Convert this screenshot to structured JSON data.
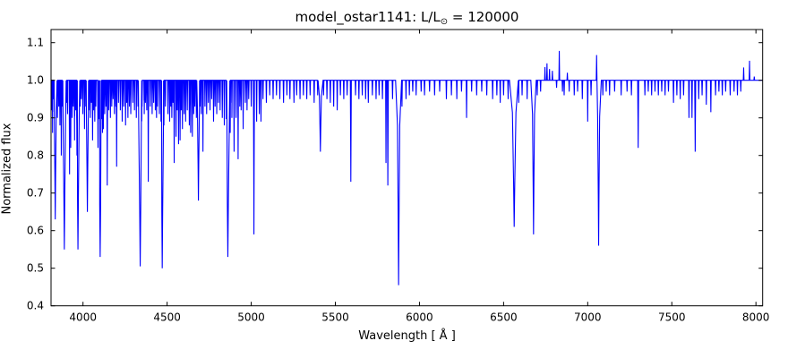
{
  "figure": {
    "title_prefix": "model_ostar1141: L/L",
    "title_sub": "⊙",
    "title_suffix": " = 120000",
    "xlabel": "Wavelength [ Å ]",
    "ylabel": "Normalized flux"
  },
  "chart_data": {
    "type": "line",
    "title": "model_ostar1141: L/L⊙ = 120000",
    "xlabel": "Wavelength [ Å ]",
    "ylabel": "Normalized flux",
    "xlim": [
      3810,
      8040
    ],
    "ylim": [
      0.4,
      1.135
    ],
    "xtick_values": [
      4000,
      4500,
      5000,
      5500,
      6000,
      6500,
      7000,
      7500,
      8000
    ],
    "xtick_labels": [
      "4000",
      "4500",
      "5000",
      "5500",
      "6000",
      "6500",
      "7000",
      "7500",
      "8000"
    ],
    "ytick_values": [
      0.4,
      0.5,
      0.6,
      0.7,
      0.8,
      0.9,
      1.0,
      1.1
    ],
    "ytick_labels": [
      "0.4",
      "0.5",
      "0.6",
      "0.7",
      "0.8",
      "0.9",
      "1.0",
      "1.1"
    ],
    "grid": false,
    "legend": null,
    "line_color": "#0000ff",
    "frame_color": "#000000",
    "background": "#ffffff",
    "continuum_flux": 1.0,
    "spectral_lines_format": [
      "wavelength_angstrom",
      "min_or_peak_flux",
      "optional_halfwidth_angstrom"
    ],
    "spectral_lines": [
      [
        3814,
        0.92
      ],
      [
        3819,
        0.86
      ],
      [
        3826,
        0.95
      ],
      [
        3835,
        0.63,
        4
      ],
      [
        3848,
        0.9
      ],
      [
        3856,
        0.93
      ],
      [
        3863,
        0.88
      ],
      [
        3871,
        0.8
      ],
      [
        3878,
        0.93
      ],
      [
        3889,
        0.55,
        5
      ],
      [
        3902,
        0.94
      ],
      [
        3908,
        0.91
      ],
      [
        3920,
        0.75
      ],
      [
        3927,
        0.82
      ],
      [
        3935,
        0.9
      ],
      [
        3942,
        0.93
      ],
      [
        3950,
        0.84
      ],
      [
        3957,
        0.92
      ],
      [
        3964,
        0.8
      ],
      [
        3970,
        0.55,
        5
      ],
      [
        3983,
        0.93
      ],
      [
        3990,
        0.95
      ],
      [
        3999,
        0.91
      ],
      [
        4009,
        0.87
      ],
      [
        4017,
        0.93
      ],
      [
        4026,
        0.65,
        4
      ],
      [
        4035,
        0.92
      ],
      [
        4043,
        0.9
      ],
      [
        4050,
        0.94
      ],
      [
        4057,
        0.84
      ],
      [
        4063,
        0.92
      ],
      [
        4070,
        0.89
      ],
      [
        4076,
        0.93
      ],
      [
        4089,
        0.82
      ],
      [
        4097,
        0.9
      ],
      [
        4102,
        0.53,
        5.5
      ],
      [
        4110,
        0.92
      ],
      [
        4116,
        0.86
      ],
      [
        4121,
        0.87
      ],
      [
        4129,
        0.91
      ],
      [
        4137,
        0.93
      ],
      [
        4144,
        0.72
      ],
      [
        4153,
        0.92
      ],
      [
        4163,
        0.9
      ],
      [
        4171,
        0.93
      ],
      [
        4179,
        0.95
      ],
      [
        4187,
        0.91
      ],
      [
        4195,
        0.93
      ],
      [
        4200,
        0.77
      ],
      [
        4211,
        0.94
      ],
      [
        4222,
        0.92
      ],
      [
        4233,
        0.89
      ],
      [
        4242,
        0.93
      ],
      [
        4253,
        0.88
      ],
      [
        4260,
        0.94
      ],
      [
        4267,
        0.9
      ],
      [
        4276,
        0.93
      ],
      [
        4284,
        0.91
      ],
      [
        4296,
        0.94
      ],
      [
        4306,
        0.92
      ],
      [
        4317,
        0.9
      ],
      [
        4327,
        0.93
      ],
      [
        4340,
        0.505,
        6
      ],
      [
        4351,
        0.93
      ],
      [
        4364,
        0.91
      ],
      [
        4371,
        0.94
      ],
      [
        4379,
        0.92
      ],
      [
        4388,
        0.73
      ],
      [
        4400,
        0.93
      ],
      [
        4411,
        0.91
      ],
      [
        4420,
        0.94
      ],
      [
        4430,
        0.92
      ],
      [
        4437,
        0.9
      ],
      [
        4442,
        0.93
      ],
      [
        4454,
        0.91
      ],
      [
        4465,
        0.94
      ],
      [
        4471,
        0.5,
        5
      ],
      [
        4481,
        0.88
      ],
      [
        4490,
        0.93
      ],
      [
        4505,
        0.91
      ],
      [
        4515,
        0.89
      ],
      [
        4522,
        0.93
      ],
      [
        4528,
        0.9
      ],
      [
        4535,
        0.94
      ],
      [
        4542,
        0.78
      ],
      [
        4553,
        0.85
      ],
      [
        4560,
        0.92
      ],
      [
        4568,
        0.83
      ],
      [
        4577,
        0.84
      ],
      [
        4584,
        0.92
      ],
      [
        4591,
        0.87
      ],
      [
        4601,
        0.91
      ],
      [
        4610,
        0.89
      ],
      [
        4620,
        0.92
      ],
      [
        4632,
        0.88
      ],
      [
        4640,
        0.86
      ],
      [
        4650,
        0.85
      ],
      [
        4658,
        0.91
      ],
      [
        4665,
        0.93
      ],
      [
        4674,
        0.9
      ],
      [
        4686,
        0.68,
        4
      ],
      [
        4695,
        0.93
      ],
      [
        4703,
        0.91
      ],
      [
        4713,
        0.81
      ],
      [
        4725,
        0.93
      ],
      [
        4735,
        0.91
      ],
      [
        4745,
        0.94
      ],
      [
        4755,
        0.92
      ],
      [
        4765,
        0.95
      ],
      [
        4776,
        0.89
      ],
      [
        4785,
        0.93
      ],
      [
        4795,
        0.91
      ],
      [
        4805,
        0.94
      ],
      [
        4815,
        0.92
      ],
      [
        4828,
        0.9
      ],
      [
        4840,
        0.88
      ],
      [
        4852,
        0.91
      ],
      [
        4861,
        0.53,
        6
      ],
      [
        4875,
        0.86
      ],
      [
        4885,
        0.9
      ],
      [
        4898,
        0.81
      ],
      [
        4910,
        0.9
      ],
      [
        4922,
        0.79
      ],
      [
        4932,
        0.93
      ],
      [
        4940,
        0.92
      ],
      [
        4952,
        0.87
      ],
      [
        4965,
        0.94
      ],
      [
        4975,
        0.92
      ],
      [
        4985,
        0.95
      ],
      [
        5000,
        0.93
      ],
      [
        5016,
        0.59,
        3
      ],
      [
        5032,
        0.89
      ],
      [
        5048,
        0.91
      ],
      [
        5058,
        0.89
      ],
      [
        5070,
        0.95
      ],
      [
        5090,
        0.94
      ],
      [
        5110,
        0.96
      ],
      [
        5130,
        0.95
      ],
      [
        5150,
        0.96
      ],
      [
        5170,
        0.95
      ],
      [
        5192,
        0.94
      ],
      [
        5212,
        0.96
      ],
      [
        5230,
        0.95
      ],
      [
        5254,
        0.94
      ],
      [
        5270,
        0.96
      ],
      [
        5290,
        0.95
      ],
      [
        5310,
        0.96
      ],
      [
        5330,
        0.95
      ],
      [
        5350,
        0.96
      ],
      [
        5374,
        0.94
      ],
      [
        5395,
        0.96
      ],
      [
        5411,
        0.81,
        4
      ],
      [
        5430,
        0.96
      ],
      [
        5450,
        0.95
      ],
      [
        5470,
        0.94
      ],
      [
        5490,
        0.93
      ],
      [
        5511,
        0.92
      ],
      [
        5530,
        0.96
      ],
      [
        5550,
        0.95
      ],
      [
        5570,
        0.96
      ],
      [
        5592,
        0.73,
        3
      ],
      [
        5620,
        0.96
      ],
      [
        5640,
        0.95
      ],
      [
        5660,
        0.96
      ],
      [
        5680,
        0.95
      ],
      [
        5696,
        0.94
      ],
      [
        5720,
        0.96
      ],
      [
        5742,
        0.95
      ],
      [
        5760,
        0.96
      ],
      [
        5780,
        0.95
      ],
      [
        5801,
        0.78
      ],
      [
        5812,
        0.72,
        3
      ],
      [
        5840,
        0.95
      ],
      [
        5876,
        0.455,
        4.5
      ],
      [
        5896,
        0.93
      ],
      [
        5920,
        0.95
      ],
      [
        5940,
        0.96
      ],
      [
        5960,
        0.97
      ],
      [
        5980,
        0.96
      ],
      [
        6010,
        0.97
      ],
      [
        6030,
        0.96
      ],
      [
        6060,
        0.97
      ],
      [
        6090,
        0.96
      ],
      [
        6120,
        0.97
      ],
      [
        6160,
        0.95
      ],
      [
        6190,
        0.96
      ],
      [
        6222,
        0.95
      ],
      [
        6250,
        0.97
      ],
      [
        6280,
        0.9
      ],
      [
        6310,
        0.97
      ],
      [
        6340,
        0.96
      ],
      [
        6370,
        0.97
      ],
      [
        6400,
        0.96
      ],
      [
        6435,
        0.95
      ],
      [
        6460,
        0.96
      ],
      [
        6480,
        0.94
      ],
      [
        6500,
        0.96
      ],
      [
        6527,
        0.95
      ],
      [
        6563,
        0.61,
        7
      ],
      [
        6590,
        0.94
      ],
      [
        6610,
        0.96
      ],
      [
        6640,
        0.95
      ],
      [
        6678,
        0.59,
        4
      ],
      [
        6700,
        0.96
      ],
      [
        6720,
        0.97
      ],
      [
        6746,
        1.035
      ],
      [
        6758,
        1.045
      ],
      [
        6773,
        1.03
      ],
      [
        6790,
        1.025
      ],
      [
        6815,
        0.98
      ],
      [
        6831,
        1.078
      ],
      [
        6850,
        0.97
      ],
      [
        6860,
        0.96
      ],
      [
        6879,
        1.02
      ],
      [
        6890,
        0.97
      ],
      [
        6920,
        0.96
      ],
      [
        6940,
        0.97
      ],
      [
        6968,
        0.95
      ],
      [
        7000,
        0.89
      ],
      [
        7020,
        0.96
      ],
      [
        7053,
        1.067
      ],
      [
        7065,
        0.56,
        4
      ],
      [
        7090,
        0.96
      ],
      [
        7110,
        0.97
      ],
      [
        7130,
        0.96
      ],
      [
        7160,
        0.97
      ],
      [
        7199,
        0.96
      ],
      [
        7234,
        0.97
      ],
      [
        7260,
        0.96
      ],
      [
        7300,
        0.82,
        3
      ],
      [
        7340,
        0.96
      ],
      [
        7360,
        0.97
      ],
      [
        7380,
        0.96
      ],
      [
        7400,
        0.97
      ],
      [
        7420,
        0.96
      ],
      [
        7440,
        0.97
      ],
      [
        7460,
        0.96
      ],
      [
        7480,
        0.97
      ],
      [
        7510,
        0.94
      ],
      [
        7530,
        0.96
      ],
      [
        7550,
        0.95
      ],
      [
        7570,
        0.96
      ],
      [
        7602,
        0.9
      ],
      [
        7620,
        0.9
      ],
      [
        7639,
        0.81,
        3
      ],
      [
        7660,
        0.95
      ],
      [
        7680,
        0.96
      ],
      [
        7705,
        0.935
      ],
      [
        7732,
        0.915
      ],
      [
        7760,
        0.96
      ],
      [
        7780,
        0.97
      ],
      [
        7800,
        0.96
      ],
      [
        7820,
        0.97
      ],
      [
        7847,
        0.96
      ],
      [
        7870,
        0.97
      ],
      [
        7890,
        0.96
      ],
      [
        7910,
        0.97
      ],
      [
        7927,
        1.034
      ],
      [
        7962,
        1.052
      ],
      [
        7990,
        1.01
      ]
    ]
  }
}
